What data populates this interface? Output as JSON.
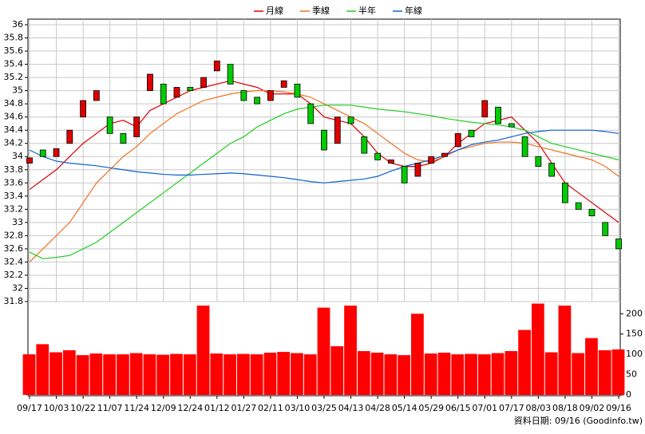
{
  "chart_data": {
    "type": "candlestick",
    "legend": "top",
    "footer": "資料日期: 09/16  (Goodinfo.tw)",
    "categories": [
      "09/17",
      null,
      "10/03",
      null,
      "10/22",
      null,
      "11/07",
      null,
      "11/24",
      null,
      "12/09",
      null,
      "12/24",
      null,
      "01/12",
      null,
      "01/27",
      null,
      "02/11",
      null,
      "03/10",
      null,
      "03/25",
      null,
      "04/13",
      null,
      "04/28",
      null,
      "05/14",
      null,
      "05/29",
      null,
      "06/15",
      null,
      "07/01",
      null,
      "07/17",
      null,
      "08/03",
      null,
      "08/18",
      null,
      "09/02",
      null,
      "09/16"
    ],
    "open": [
      33.9,
      34.1,
      34.0,
      34.2,
      34.6,
      34.85,
      34.6,
      34.35,
      34.3,
      35.0,
      35.1,
      34.9,
      35.05,
      35.05,
      35.3,
      35.4,
      35.0,
      34.9,
      34.85,
      35.05,
      35.1,
      34.8,
      34.4,
      34.2,
      34.6,
      34.3,
      34.05,
      33.9,
      33.85,
      33.7,
      33.9,
      34.0,
      34.15,
      34.4,
      34.6,
      34.75,
      34.5,
      34.3,
      34.0,
      33.9,
      33.6,
      33.3,
      33.2,
      33.0,
      32.75
    ],
    "close": [
      33.98,
      34.0,
      34.12,
      34.4,
      34.85,
      35.0,
      34.35,
      34.2,
      34.6,
      35.25,
      34.8,
      35.05,
      35.0,
      35.2,
      35.45,
      35.1,
      34.85,
      34.8,
      35.0,
      35.15,
      34.9,
      34.5,
      34.1,
      34.6,
      34.5,
      34.05,
      33.95,
      33.95,
      33.6,
      33.9,
      34.0,
      34.05,
      34.35,
      34.3,
      34.85,
      34.5,
      34.45,
      34.0,
      33.85,
      33.7,
      33.3,
      33.2,
      33.1,
      32.8,
      32.6
    ],
    "up_color": "#dd0000",
    "down_color": "#00cc00",
    "series": [
      {
        "name": "月線",
        "color": "#dd0000",
        "values": [
          33.5,
          33.65,
          33.8,
          34.0,
          34.2,
          34.35,
          34.5,
          34.55,
          34.45,
          34.7,
          34.8,
          34.9,
          35.0,
          35.05,
          35.1,
          35.15,
          35.1,
          35.05,
          34.95,
          34.95,
          34.95,
          34.8,
          34.6,
          34.55,
          34.5,
          34.3,
          34.05,
          33.9,
          33.85,
          33.85,
          33.9,
          34.0,
          34.2,
          34.35,
          34.5,
          34.55,
          34.6,
          34.4,
          34.2,
          33.9,
          33.6,
          33.45,
          33.3,
          33.15,
          33.0
        ]
      },
      {
        "name": "季線",
        "color": "#f07020",
        "values": [
          32.4,
          32.6,
          32.8,
          33.0,
          33.3,
          33.6,
          33.8,
          34.0,
          34.15,
          34.35,
          34.5,
          34.65,
          34.75,
          34.85,
          34.9,
          34.95,
          34.98,
          35.0,
          35.0,
          34.98,
          34.95,
          34.9,
          34.8,
          34.7,
          34.6,
          34.5,
          34.35,
          34.2,
          34.05,
          33.95,
          33.92,
          34.0,
          34.1,
          34.15,
          34.2,
          34.22,
          34.22,
          34.2,
          34.15,
          34.1,
          34.05,
          34.0,
          33.95,
          33.85,
          33.7
        ]
      },
      {
        "name": "半年",
        "color": "#22cc22",
        "values": [
          32.55,
          32.45,
          32.47,
          32.5,
          32.6,
          32.7,
          32.85,
          33.0,
          33.15,
          33.3,
          33.45,
          33.6,
          33.75,
          33.9,
          34.05,
          34.2,
          34.3,
          34.45,
          34.55,
          34.65,
          34.72,
          34.75,
          34.78,
          34.78,
          34.78,
          34.75,
          34.72,
          34.7,
          34.68,
          34.65,
          34.62,
          34.58,
          34.55,
          34.52,
          34.5,
          34.48,
          34.45,
          34.4,
          34.3,
          34.2,
          34.15,
          34.1,
          34.05,
          34.0,
          33.95
        ]
      },
      {
        "name": "年線",
        "color": "#1060d0",
        "values": [
          34.1,
          34.0,
          33.93,
          33.9,
          33.88,
          33.86,
          33.83,
          33.8,
          33.77,
          33.75,
          33.73,
          33.72,
          33.72,
          33.73,
          33.74,
          33.75,
          33.74,
          33.72,
          33.7,
          33.68,
          33.65,
          33.62,
          33.6,
          33.62,
          33.64,
          33.66,
          33.7,
          33.78,
          33.85,
          33.9,
          33.95,
          34.02,
          34.1,
          34.18,
          34.22,
          34.25,
          34.3,
          34.35,
          34.38,
          34.4,
          34.4,
          34.4,
          34.4,
          34.38,
          34.35
        ]
      }
    ],
    "ylim": [
      31.8,
      36
    ],
    "yticks": [
      31.8,
      32,
      32.2,
      32.4,
      32.6,
      32.8,
      33,
      33.2,
      33.4,
      33.6,
      33.8,
      34,
      34.2,
      34.4,
      34.6,
      34.8,
      35,
      35.2,
      35.4,
      35.6,
      35.8,
      36
    ],
    "grid": true,
    "volume": {
      "color": "#ff0000",
      "axis": "y2",
      "values": [
        100,
        125,
        105,
        110,
        98,
        102,
        100,
        100,
        103,
        100,
        99,
        101,
        100,
        220,
        102,
        100,
        101,
        100,
        104,
        106,
        103,
        100,
        215,
        120,
        220,
        108,
        104,
        100,
        98,
        200,
        102,
        104,
        100,
        101,
        100,
        103,
        108,
        160,
        225,
        105,
        220,
        103,
        140,
        110,
        112
      ],
      "y2lim": [
        0,
        230
      ],
      "y2ticks": [
        0,
        50,
        100,
        150,
        200
      ]
    }
  }
}
